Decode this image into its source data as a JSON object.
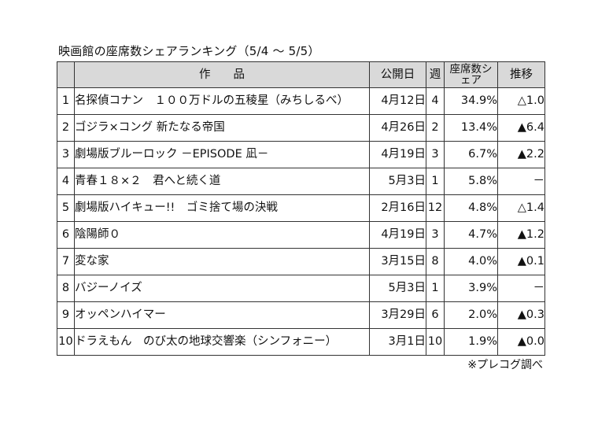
{
  "title": "映画館の座席数シェアランキング（5/4 ～ 5/5）",
  "table": {
    "headers": {
      "rank": "",
      "title": "作　　品",
      "release": "公開日",
      "week": "週",
      "share": "座席数シェア",
      "trend": "推移"
    },
    "rows": [
      {
        "rank": "1",
        "title": "名探偵コナン　１００万ドルの五稜星（みちしるべ）",
        "release": "4月12日",
        "week": "4",
        "share": "34.9%",
        "trend": "△1.0"
      },
      {
        "rank": "2",
        "title": "ゴジラ×コング 新たなる帝国",
        "release": "4月26日",
        "week": "2",
        "share": "13.4%",
        "trend": "▲6.4"
      },
      {
        "rank": "3",
        "title": "劇場版ブルーロック －EPISODE 凪－",
        "release": "4月19日",
        "week": "3",
        "share": "6.7%",
        "trend": "▲2.2"
      },
      {
        "rank": "4",
        "title": "青春１８×２　君へと続く道",
        "release": "5月3日",
        "week": "1",
        "share": "5.8%",
        "trend": "－"
      },
      {
        "rank": "5",
        "title": "劇場版ハイキュー!!　ゴミ捨て場の決戦",
        "release": "2月16日",
        "week": "12",
        "share": "4.8%",
        "trend": "△1.4"
      },
      {
        "rank": "6",
        "title": "陰陽師０",
        "release": "4月19日",
        "week": "3",
        "share": "4.7%",
        "trend": "▲1.2"
      },
      {
        "rank": "7",
        "title": "変な家",
        "release": "3月15日",
        "week": "8",
        "share": "4.0%",
        "trend": "▲0.1"
      },
      {
        "rank": "8",
        "title": "バジーノイズ",
        "release": "5月3日",
        "week": "1",
        "share": "3.9%",
        "trend": "－"
      },
      {
        "rank": "9",
        "title": "オッペンハイマー",
        "release": "3月29日",
        "week": "6",
        "share": "2.0%",
        "trend": "▲0.3"
      },
      {
        "rank": "10",
        "title": "ドラえもん　のび太の地球交響楽（シンフォニー）",
        "release": "3月1日",
        "week": "10",
        "share": "1.9%",
        "trend": "▲0.0"
      }
    ]
  },
  "source": "※プレコグ調べ",
  "colors": {
    "header_bg": "#d9d9d9",
    "border": "#333333"
  }
}
